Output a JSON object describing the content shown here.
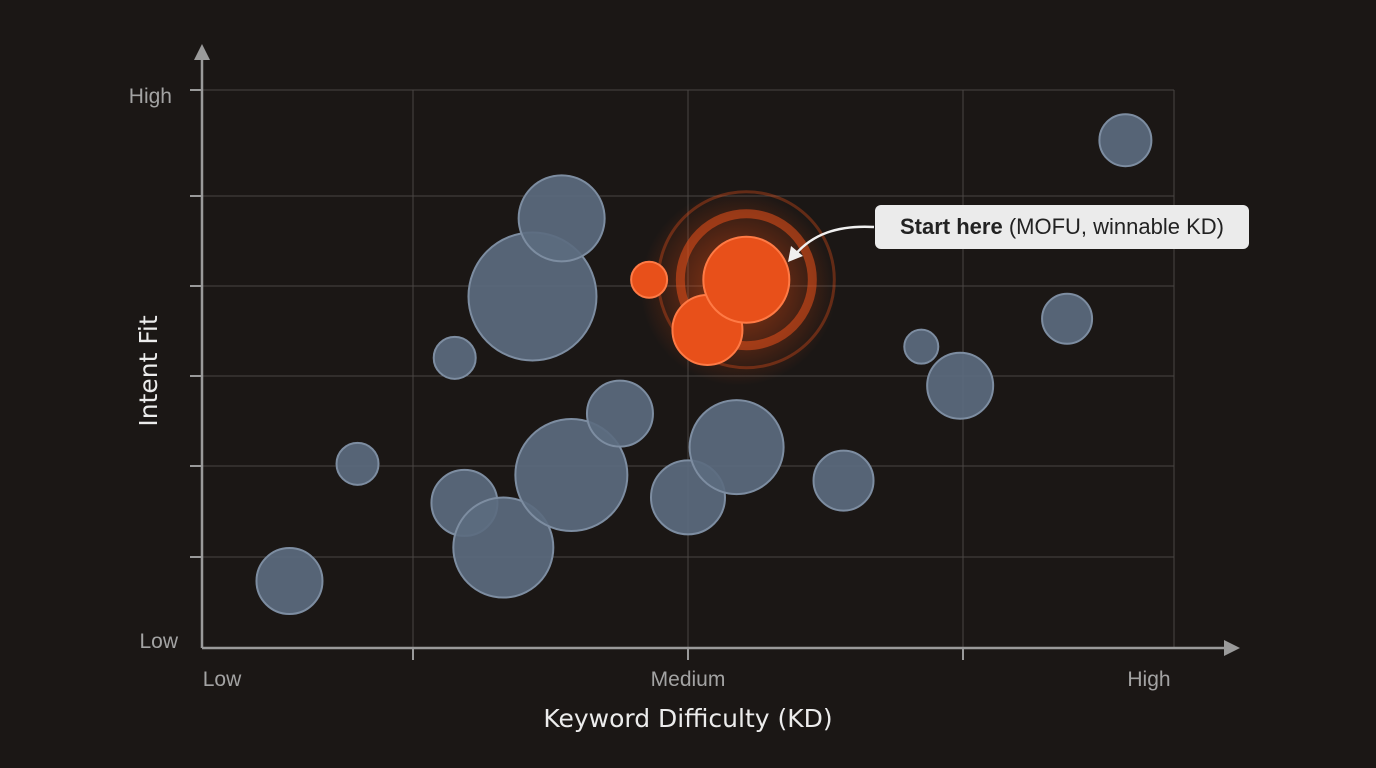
{
  "chart_data": {
    "type": "scatter",
    "subtype": "bubble",
    "xlabel": "Keyword Difficulty (KD)",
    "ylabel": "Intent Fit",
    "x_tick_labels": [
      "Low",
      "Medium",
      "High"
    ],
    "y_tick_labels": [
      "Low",
      "High"
    ],
    "xlim": [
      0,
      100
    ],
    "ylim": [
      0,
      100
    ],
    "grid": true,
    "colors": {
      "default": "#5b6b7f",
      "highlight": "#e8501a",
      "background": "#1b1715"
    },
    "points": [
      {
        "x": 9,
        "y": 12,
        "size": 33,
        "highlight": false
      },
      {
        "x": 16,
        "y": 33,
        "size": 21,
        "highlight": false
      },
      {
        "x": 26,
        "y": 52,
        "size": 21,
        "highlight": false
      },
      {
        "x": 27,
        "y": 26,
        "size": 33,
        "highlight": false
      },
      {
        "x": 31,
        "y": 18,
        "size": 50,
        "highlight": false
      },
      {
        "x": 34,
        "y": 63,
        "size": 64,
        "highlight": false
      },
      {
        "x": 37,
        "y": 77,
        "size": 43,
        "highlight": false
      },
      {
        "x": 38,
        "y": 31,
        "size": 56,
        "highlight": false
      },
      {
        "x": 43,
        "y": 42,
        "size": 33,
        "highlight": false
      },
      {
        "x": 46,
        "y": 66,
        "size": 18,
        "highlight": true
      },
      {
        "x": 50,
        "y": 27,
        "size": 37,
        "highlight": false
      },
      {
        "x": 52,
        "y": 57,
        "size": 35,
        "highlight": true
      },
      {
        "x": 55,
        "y": 36,
        "size": 47,
        "highlight": false
      },
      {
        "x": 56,
        "y": 66,
        "size": 43,
        "highlight": true
      },
      {
        "x": 66,
        "y": 30,
        "size": 30,
        "highlight": false
      },
      {
        "x": 74,
        "y": 54,
        "size": 17,
        "highlight": false
      },
      {
        "x": 78,
        "y": 47,
        "size": 33,
        "highlight": false
      },
      {
        "x": 89,
        "y": 59,
        "size": 25,
        "highlight": false
      },
      {
        "x": 95,
        "y": 91,
        "size": 26,
        "highlight": false
      }
    ],
    "annotation": {
      "bold": "Start here",
      "text": " (MOFU, winnable KD)",
      "target_point": 13
    }
  }
}
